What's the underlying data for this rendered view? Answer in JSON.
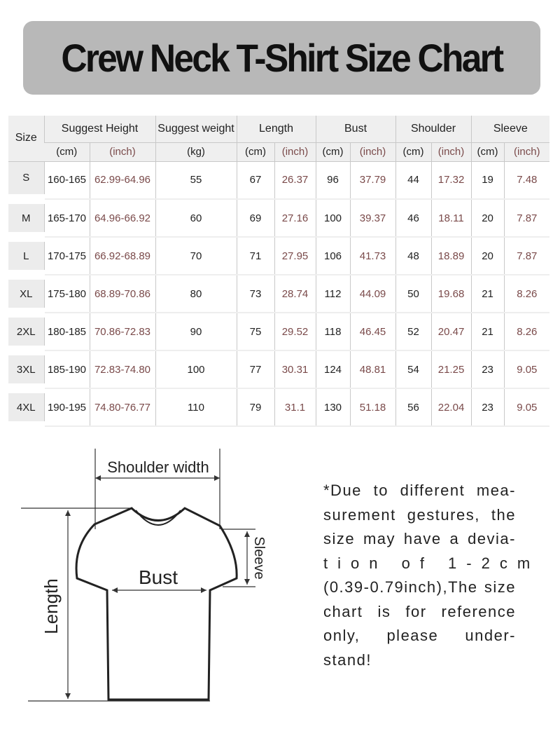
{
  "title": "Crew Neck T-Shirt Size Chart",
  "table": {
    "headers": [
      "Size",
      "Suggest Height",
      "Suggest weight",
      "Length",
      "Bust",
      "Shoulder",
      "Sleeve"
    ],
    "units": [
      "(cm)",
      "(inch)",
      "(kg)",
      "(cm)",
      "(inch)",
      "(cm)",
      "(inch)",
      "(cm)",
      "(inch)",
      "(cm)",
      "(inch)"
    ],
    "rows": [
      [
        "S",
        "160-165",
        "62.99-64.96",
        "55",
        "67",
        "26.37",
        "96",
        "37.79",
        "44",
        "17.32",
        "19",
        "7.48"
      ],
      [
        "M",
        "165-170",
        "64.96-66.92",
        "60",
        "69",
        "27.16",
        "100",
        "39.37",
        "46",
        "18.11",
        "20",
        "7.87"
      ],
      [
        "L",
        "170-175",
        "66.92-68.89",
        "70",
        "71",
        "27.95",
        "106",
        "41.73",
        "48",
        "18.89",
        "20",
        "7.87"
      ],
      [
        "XL",
        "175-180",
        "68.89-70.86",
        "80",
        "73",
        "28.74",
        "112",
        "44.09",
        "50",
        "19.68",
        "21",
        "8.26"
      ],
      [
        "2XL",
        "180-185",
        "70.86-72.83",
        "90",
        "75",
        "29.52",
        "118",
        "46.45",
        "52",
        "20.47",
        "21",
        "8.26"
      ],
      [
        "3XL",
        "185-190",
        "72.83-74.80",
        "100",
        "77",
        "30.31",
        "124",
        "48.81",
        "54",
        "21.25",
        "23",
        "9.05"
      ],
      [
        "4XL",
        "190-195",
        "74.80-76.77",
        "110",
        "79",
        "31.1",
        "130",
        "51.18",
        "56",
        "22.04",
        "23",
        "9.05"
      ]
    ]
  },
  "diagram": {
    "shoulder": "Shoulder width",
    "bust": "Bust",
    "length": "Length",
    "sleeve": "Sleeve"
  },
  "note": [
    "*Due to different mea-",
    "surement gestures, the",
    "size may have a devia-",
    "tion of 1-2cm",
    "(0.39-0.79inch),The size",
    "chart is for reference",
    "only, please under-",
    "stand!"
  ]
}
